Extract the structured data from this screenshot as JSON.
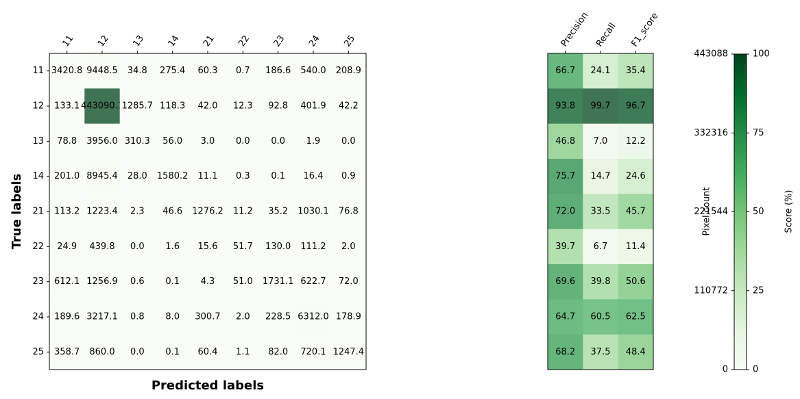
{
  "chart_data": [
    {
      "type": "heatmap",
      "xlabel": "Predicted labels",
      "ylabel": "True labels",
      "x_categories": [
        "11",
        "12",
        "13",
        "14",
        "21",
        "22",
        "23",
        "24",
        "25"
      ],
      "y_categories": [
        "11",
        "12",
        "13",
        "14",
        "21",
        "22",
        "23",
        "24",
        "25"
      ],
      "values": [
        [
          3420.8,
          9448.5,
          34.8,
          275.4,
          60.3,
          0.7,
          186.6,
          540.0,
          208.9
        ],
        [
          133.1,
          443090.1,
          1285.7,
          118.3,
          42.0,
          12.3,
          92.8,
          401.9,
          42.2
        ],
        [
          78.8,
          3956.0,
          310.3,
          56.0,
          3.0,
          0.0,
          0.0,
          1.9,
          0.0
        ],
        [
          201.0,
          8945.4,
          28.0,
          1580.2,
          11.1,
          0.3,
          0.1,
          16.4,
          0.9
        ],
        [
          113.2,
          1223.4,
          2.3,
          46.6,
          1276.2,
          11.2,
          35.2,
          1030.1,
          76.8
        ],
        [
          24.9,
          439.8,
          0.0,
          1.6,
          15.6,
          51.7,
          130.0,
          111.2,
          2.0
        ],
        [
          612.1,
          1256.9,
          0.6,
          0.1,
          4.3,
          51.0,
          1731.1,
          622.7,
          72.0
        ],
        [
          189.6,
          3217.1,
          0.8,
          8.0,
          300.7,
          2.0,
          228.5,
          6312.0,
          178.9
        ],
        [
          358.7,
          860.0,
          0.0,
          0.1,
          60.4,
          1.1,
          82.0,
          720.1,
          1247.4
        ]
      ],
      "value_labels": [
        [
          "3420.8",
          "9448.5",
          "34.8",
          "275.4",
          "60.3",
          "0.7",
          "186.6",
          "540.0",
          "208.9"
        ],
        [
          "133.1",
          "443090.1",
          "1285.7",
          "118.3",
          "42.0",
          "12.3",
          "92.8",
          "401.9",
          "42.2"
        ],
        [
          "78.8",
          "3956.0",
          "310.3",
          "56.0",
          "3.0",
          "0.0",
          "0.0",
          "1.9",
          "0.0"
        ],
        [
          "201.0",
          "8945.4",
          "28.0",
          "1580.2",
          "11.1",
          "0.3",
          "0.1",
          "16.4",
          "0.9"
        ],
        [
          "113.2",
          "1223.4",
          "2.3",
          "46.6",
          "1276.2",
          "11.2",
          "35.2",
          "1030.1",
          "76.8"
        ],
        [
          "24.9",
          "439.8",
          "0.0",
          "1.6",
          "15.6",
          "51.7",
          "130.0",
          "111.2",
          "2.0"
        ],
        [
          "612.1",
          "1256.9",
          "0.6",
          "0.1",
          "4.3",
          "51.0",
          "1731.1",
          "622.7",
          "72.0"
        ],
        [
          "189.6",
          "3217.1",
          "0.8",
          "8.0",
          "300.7",
          "2.0",
          "228.5",
          "6312.0",
          "178.9"
        ],
        [
          "358.7",
          "860.0",
          "0.0",
          "0.1",
          "60.4",
          "1.1",
          "82.0",
          "720.1",
          "1247.4"
        ]
      ],
      "vmin": 0,
      "vmax": 443088,
      "colorbar": {
        "label": "Pixel count",
        "ticks": [
          0,
          110772,
          221544,
          332316,
          443088
        ],
        "tick_labels": [
          "0",
          "110772",
          "221544",
          "332316",
          "443088"
        ]
      },
      "colormap": {
        "low": "#f7fcf5",
        "high": "#00441b"
      },
      "cell_alpha": 0.75,
      "grid": false
    },
    {
      "type": "heatmap",
      "x_categories": [
        "Precision",
        "Recall",
        "F1_score"
      ],
      "y_categories": [
        "11",
        "12",
        "13",
        "14",
        "21",
        "22",
        "23",
        "24",
        "25"
      ],
      "values": [
        [
          66.7,
          24.1,
          35.4
        ],
        [
          93.8,
          99.7,
          96.7
        ],
        [
          46.8,
          7.0,
          12.2
        ],
        [
          75.7,
          14.7,
          24.6
        ],
        [
          72.0,
          33.5,
          45.7
        ],
        [
          39.7,
          6.7,
          11.4
        ],
        [
          69.6,
          39.8,
          50.6
        ],
        [
          64.7,
          60.5,
          62.5
        ],
        [
          68.2,
          37.5,
          48.4
        ]
      ],
      "value_labels": [
        [
          "66.7",
          "24.1",
          "35.4"
        ],
        [
          "93.8",
          "99.7",
          "96.7"
        ],
        [
          "46.8",
          "7.0",
          "12.2"
        ],
        [
          "75.7",
          "14.7",
          "24.6"
        ],
        [
          "72.0",
          "33.5",
          "45.7"
        ],
        [
          "39.7",
          "6.7",
          "11.4"
        ],
        [
          "69.6",
          "39.8",
          "50.6"
        ],
        [
          "64.7",
          "60.5",
          "62.5"
        ],
        [
          "68.2",
          "37.5",
          "48.4"
        ]
      ],
      "vmin": 0,
      "vmax": 100,
      "colorbar": {
        "label": "Score (%)",
        "ticks": [
          0,
          25,
          50,
          75,
          100
        ],
        "tick_labels": [
          "0",
          "25",
          "50",
          "75",
          "100"
        ]
      },
      "colormap": {
        "low": "#f7fcf5",
        "high": "#00441b"
      },
      "cell_alpha": 0.75,
      "grid": false
    }
  ]
}
